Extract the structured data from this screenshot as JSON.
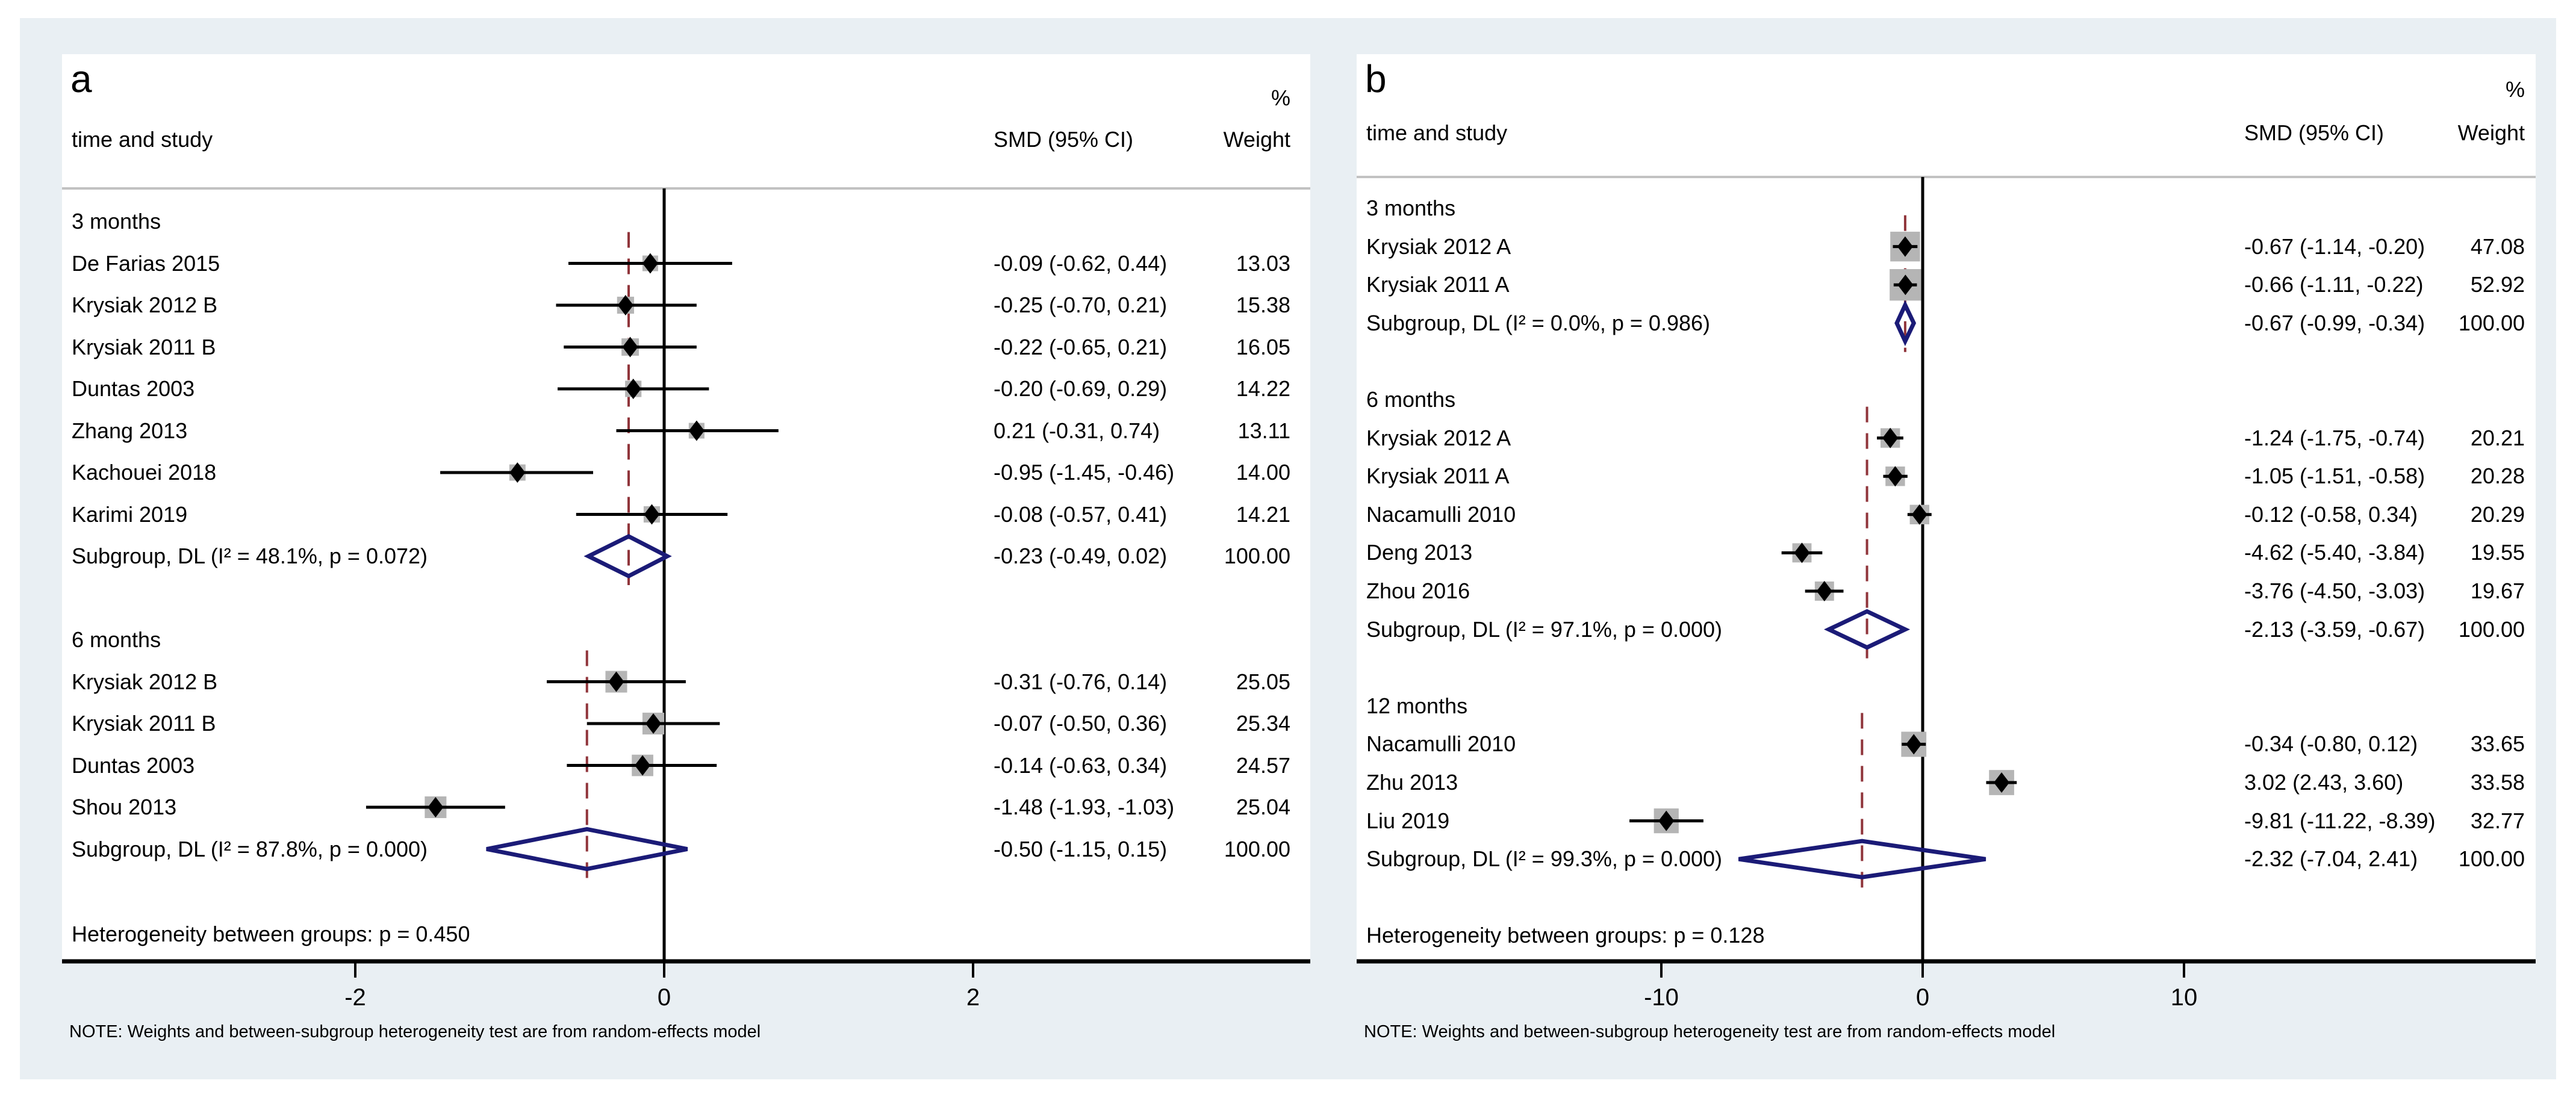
{
  "colors": {
    "page_bg": "#ffffff",
    "canvas_bg": "#e9eff3",
    "panel_bg": "#ffffff",
    "header_rule": "#c2c2c2",
    "axis_line": "#000000",
    "zero_line": "#000000",
    "ci_line": "#000000",
    "point_marker": "#000000",
    "weight_box": "#b5b5b5",
    "subgroup_diamond": "#1b1b77",
    "subgroup_dashed_line": "#90353b",
    "text": "#000000"
  },
  "note": "NOTE: Weights and between-subgroup heterogeneity test are from random-effects model",
  "chart_data": [
    {
      "type": "forest",
      "panel_label": "a",
      "columns": {
        "study": "time and study",
        "effect": "SMD (95% CI)",
        "weight_percent": "%",
        "weight": "Weight"
      },
      "axis": {
        "ticks": [
          -2,
          0,
          2
        ],
        "zero_line": 0
      },
      "heterogeneity_note": "Heterogeneity between groups: p = 0.450",
      "groups": [
        {
          "name": "3 months",
          "studies": [
            {
              "name": "De Farias 2015",
              "smd": -0.09,
              "lo": -0.62,
              "hi": 0.44,
              "label": "-0.09 (-0.62, 0.44)",
              "weight": 13.03,
              "weight_label": "13.03"
            },
            {
              "name": "Krysiak 2012 B",
              "smd": -0.25,
              "lo": -0.7,
              "hi": 0.21,
              "label": "-0.25 (-0.70, 0.21)",
              "weight": 15.38,
              "weight_label": "15.38"
            },
            {
              "name": "Krysiak 2011 B",
              "smd": -0.22,
              "lo": -0.65,
              "hi": 0.21,
              "label": "-0.22 (-0.65, 0.21)",
              "weight": 16.05,
              "weight_label": "16.05"
            },
            {
              "name": "Duntas 2003",
              "smd": -0.2,
              "lo": -0.69,
              "hi": 0.29,
              "label": "-0.20 (-0.69, 0.29)",
              "weight": 14.22,
              "weight_label": "14.22"
            },
            {
              "name": "Zhang 2013",
              "smd": 0.21,
              "lo": -0.31,
              "hi": 0.74,
              "label": "0.21 (-0.31, 0.74)",
              "weight": 13.11,
              "weight_label": "13.11"
            },
            {
              "name": "Kachouei 2018",
              "smd": -0.95,
              "lo": -1.45,
              "hi": -0.46,
              "label": "-0.95 (-1.45, -0.46)",
              "weight": 14.0,
              "weight_label": "14.00"
            },
            {
              "name": "Karimi 2019",
              "smd": -0.08,
              "lo": -0.57,
              "hi": 0.41,
              "label": "-0.08 (-0.57, 0.41)",
              "weight": 14.21,
              "weight_label": "14.21"
            }
          ],
          "subgroup": {
            "name": "Subgroup, DL (I² = 48.1%, p = 0.072)",
            "smd": -0.23,
            "lo": -0.49,
            "hi": 0.02,
            "label": "-0.23 (-0.49, 0.02)",
            "weight_label": "100.00"
          }
        },
        {
          "name": "6 months",
          "studies": [
            {
              "name": "Krysiak 2012 B",
              "smd": -0.31,
              "lo": -0.76,
              "hi": 0.14,
              "label": "-0.31 (-0.76, 0.14)",
              "weight": 25.05,
              "weight_label": "25.05"
            },
            {
              "name": "Krysiak 2011 B",
              "smd": -0.07,
              "lo": -0.5,
              "hi": 0.36,
              "label": "-0.07 (-0.50, 0.36)",
              "weight": 25.34,
              "weight_label": "25.34"
            },
            {
              "name": "Duntas 2003",
              "smd": -0.14,
              "lo": -0.63,
              "hi": 0.34,
              "label": "-0.14 (-0.63, 0.34)",
              "weight": 24.57,
              "weight_label": "24.57"
            },
            {
              "name": "Shou 2013",
              "smd": -1.48,
              "lo": -1.93,
              "hi": -1.03,
              "label": "-1.48 (-1.93, -1.03)",
              "weight": 25.04,
              "weight_label": "25.04"
            }
          ],
          "subgroup": {
            "name": "Subgroup, DL (I² = 87.8%, p = 0.000)",
            "smd": -0.5,
            "lo": -1.15,
            "hi": 0.15,
            "label": "-0.50 (-1.15, 0.15)",
            "weight_label": "100.00"
          }
        }
      ]
    },
    {
      "type": "forest",
      "panel_label": "b",
      "columns": {
        "study": "time and study",
        "effect": "SMD (95% CI)",
        "weight_percent": "%",
        "weight": "Weight"
      },
      "axis": {
        "ticks": [
          -10,
          0,
          10
        ],
        "zero_line": 0
      },
      "heterogeneity_note": "Heterogeneity between groups: p = 0.128",
      "groups": [
        {
          "name": "3 months",
          "studies": [
            {
              "name": "Krysiak 2012 A",
              "smd": -0.67,
              "lo": -1.14,
              "hi": -0.2,
              "label": "-0.67 (-1.14, -0.20)",
              "weight": 47.08,
              "weight_label": "47.08"
            },
            {
              "name": "Krysiak 2011 A",
              "smd": -0.66,
              "lo": -1.11,
              "hi": -0.22,
              "label": "-0.66 (-1.11, -0.22)",
              "weight": 52.92,
              "weight_label": "52.92"
            }
          ],
          "subgroup": {
            "name": "Subgroup, DL (I² = 0.0%, p = 0.986)",
            "smd": -0.67,
            "lo": -0.99,
            "hi": -0.34,
            "label": "-0.67 (-0.99, -0.34)",
            "weight_label": "100.00"
          }
        },
        {
          "name": "6 months",
          "studies": [
            {
              "name": "Krysiak 2012 A",
              "smd": -1.24,
              "lo": -1.75,
              "hi": -0.74,
              "label": "-1.24 (-1.75, -0.74)",
              "weight": 20.21,
              "weight_label": "20.21"
            },
            {
              "name": "Krysiak 2011 A",
              "smd": -1.05,
              "lo": -1.51,
              "hi": -0.58,
              "label": "-1.05 (-1.51, -0.58)",
              "weight": 20.28,
              "weight_label": "20.28"
            },
            {
              "name": "Nacamulli 2010",
              "smd": -0.12,
              "lo": -0.58,
              "hi": 0.34,
              "label": "-0.12 (-0.58, 0.34)",
              "weight": 20.29,
              "weight_label": "20.29"
            },
            {
              "name": "Deng 2013",
              "smd": -4.62,
              "lo": -5.4,
              "hi": -3.84,
              "label": "-4.62 (-5.40, -3.84)",
              "weight": 19.55,
              "weight_label": "19.55"
            },
            {
              "name": "Zhou 2016",
              "smd": -3.76,
              "lo": -4.5,
              "hi": -3.03,
              "label": "-3.76 (-4.50, -3.03)",
              "weight": 19.67,
              "weight_label": "19.67"
            }
          ],
          "subgroup": {
            "name": "Subgroup, DL (I² = 97.1%, p = 0.000)",
            "smd": -2.13,
            "lo": -3.59,
            "hi": -0.67,
            "label": "-2.13 (-3.59, -0.67)",
            "weight_label": "100.00"
          }
        },
        {
          "name": "12 months",
          "studies": [
            {
              "name": "Nacamulli 2010",
              "smd": -0.34,
              "lo": -0.8,
              "hi": 0.12,
              "label": "-0.34 (-0.80, 0.12)",
              "weight": 33.65,
              "weight_label": "33.65"
            },
            {
              "name": "Zhu 2013",
              "smd": 3.02,
              "lo": 2.43,
              "hi": 3.6,
              "label": "3.02 (2.43, 3.60)",
              "weight": 33.58,
              "weight_label": "33.58"
            },
            {
              "name": "Liu 2019",
              "smd": -9.81,
              "lo": -11.22,
              "hi": -8.39,
              "label": "-9.81 (-11.22, -8.39)",
              "weight": 32.77,
              "weight_label": "32.77"
            }
          ],
          "subgroup": {
            "name": "Subgroup, DL (I² = 99.3%, p = 0.000)",
            "smd": -2.32,
            "lo": -7.04,
            "hi": 2.41,
            "label": "-2.32 (-7.04, 2.41)",
            "weight_label": "100.00"
          }
        }
      ]
    }
  ]
}
